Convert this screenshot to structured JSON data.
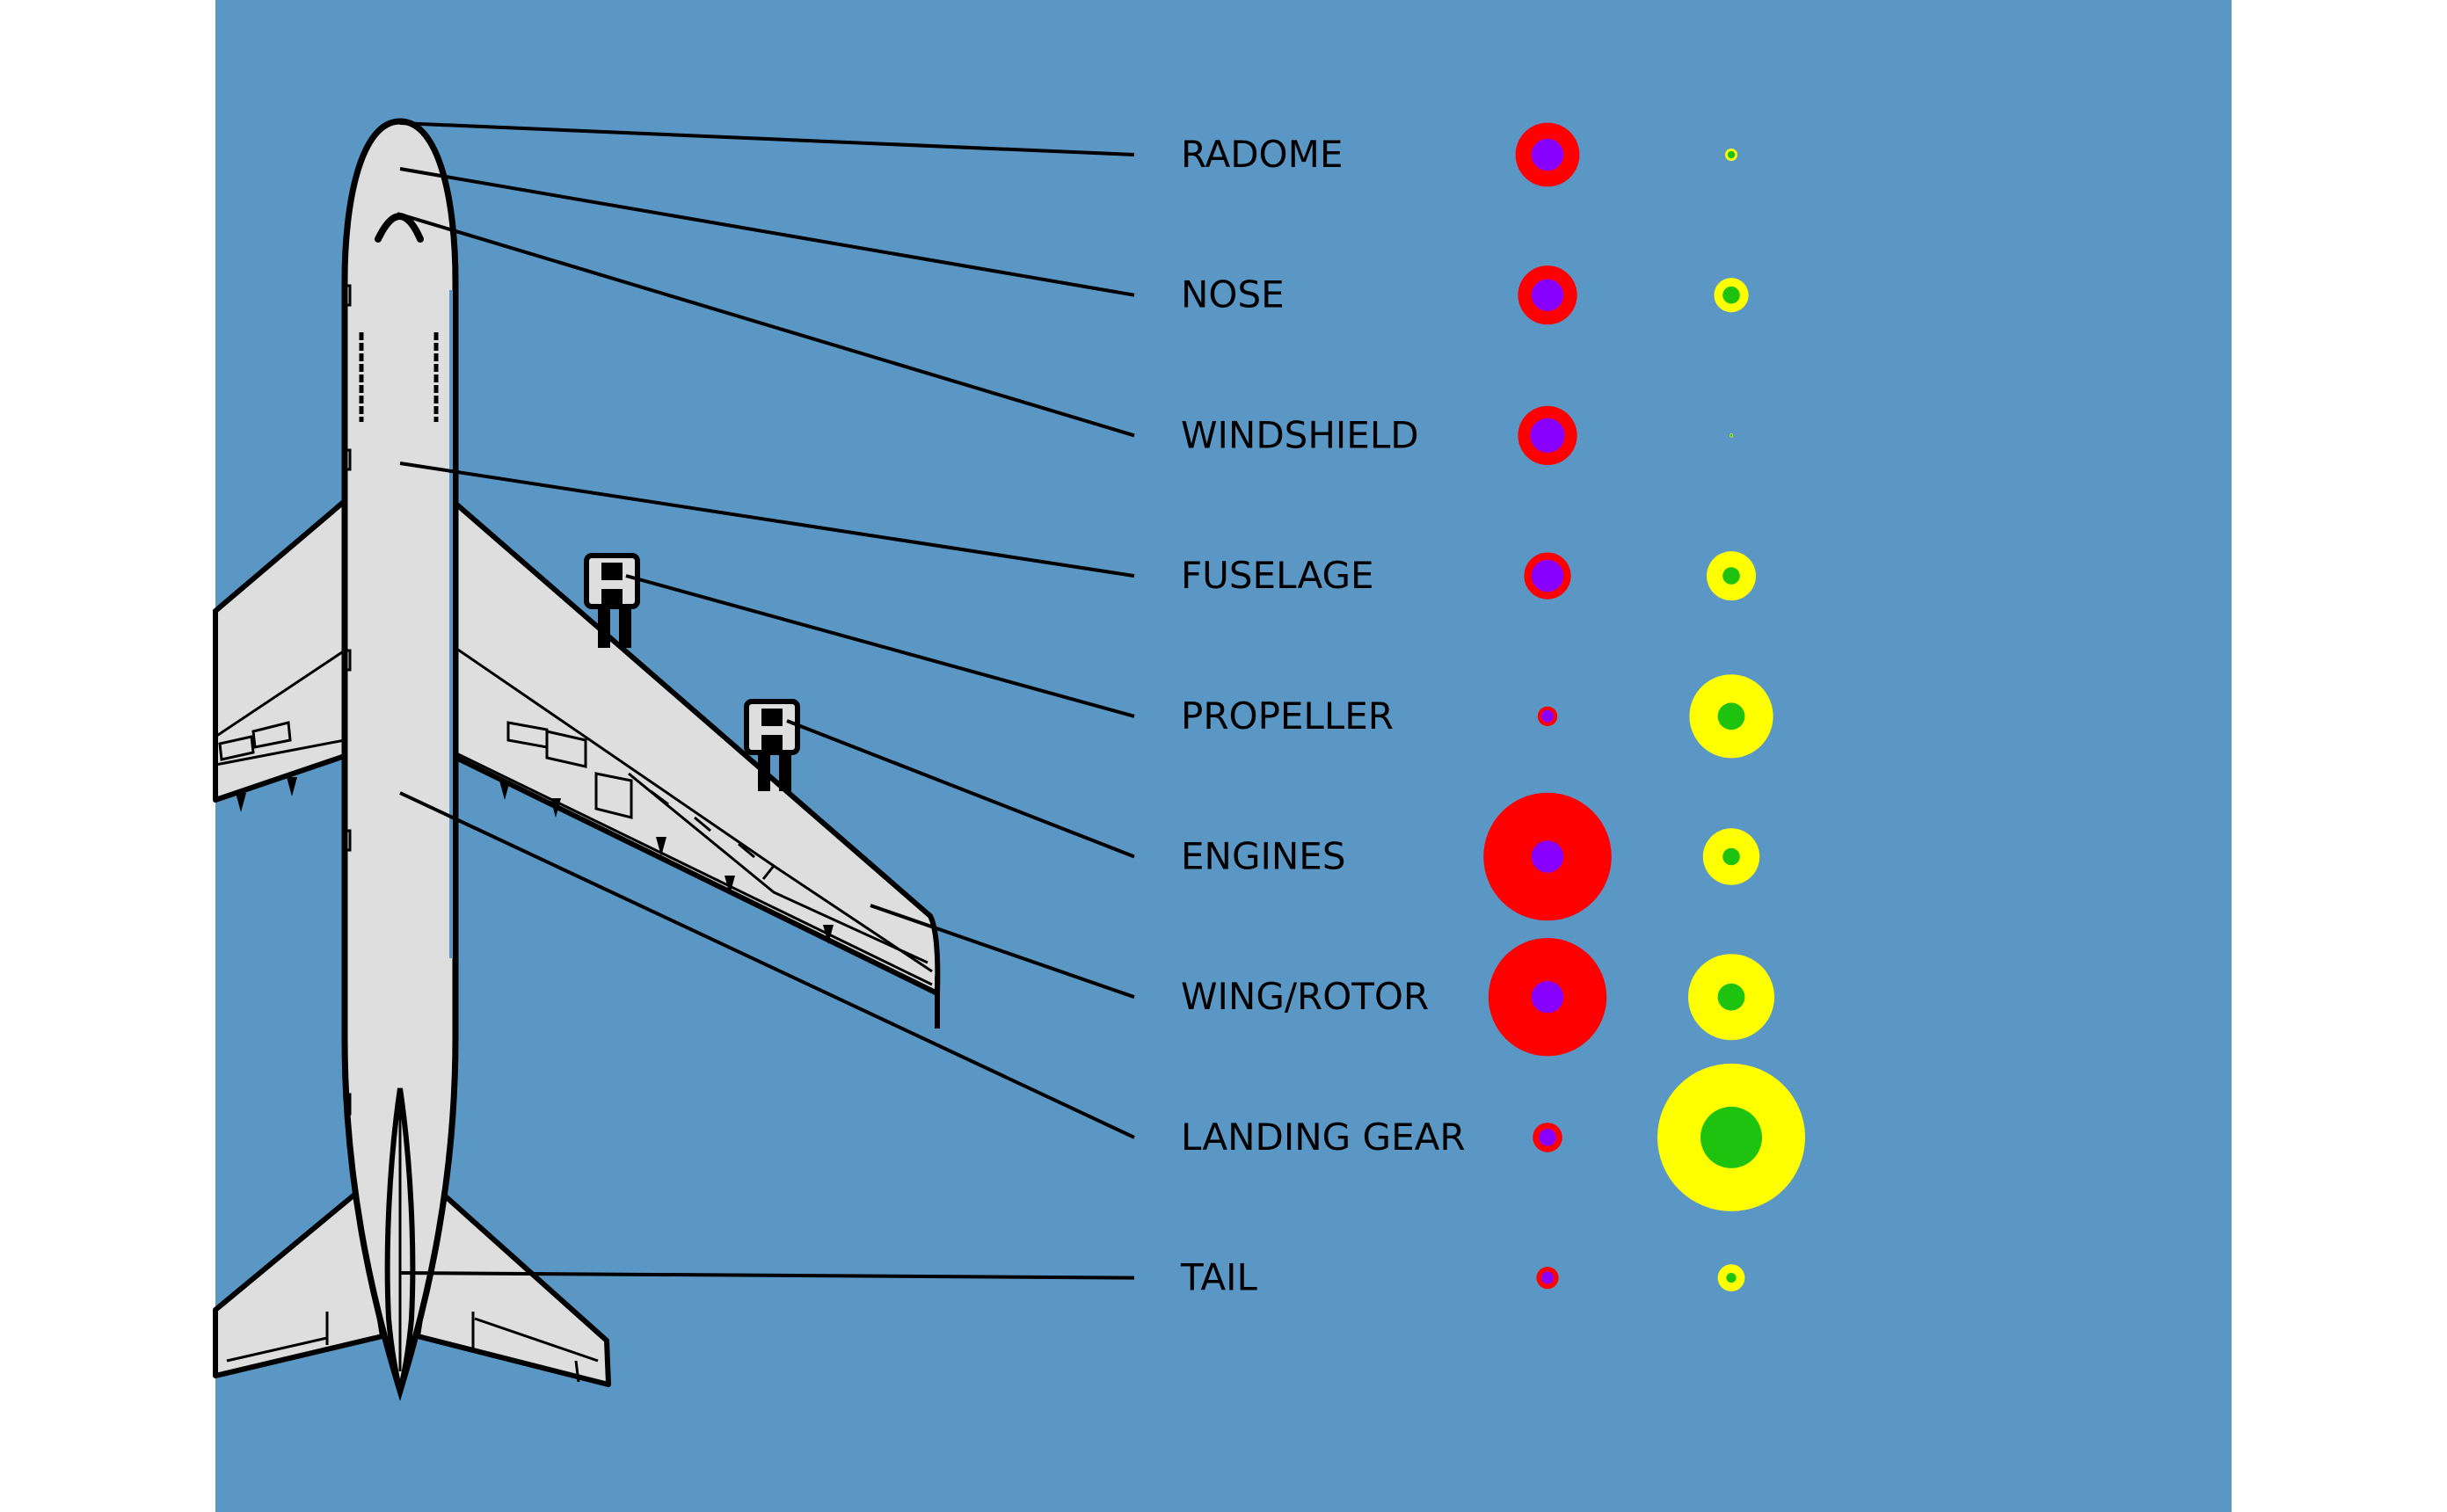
{
  "colors": {
    "background": "#5b97c4",
    "page": "#ffffff",
    "aircraft_fill": "#dedede",
    "outline": "#000000",
    "left_outer": "#ff0000",
    "left_inner": "#8800ff",
    "right_outer": "#ffff00",
    "right_inner": "#1ec30f"
  },
  "parts": [
    {
      "label": "RADOME",
      "left_outer": 0.52,
      "left_inner": 0.26,
      "right_outer": 0.1,
      "right_inner": 0.06
    },
    {
      "label": "NOSE",
      "left_outer": 0.48,
      "left_inner": 0.26,
      "right_outer": 0.28,
      "right_inner": 0.14
    },
    {
      "label": "WINDSHIELD",
      "left_outer": 0.48,
      "left_inner": 0.28,
      "right_outer": 0.03,
      "right_inner": 0.02
    },
    {
      "label": "FUSELAGE",
      "left_outer": 0.38,
      "left_inner": 0.26,
      "right_outer": 0.4,
      "right_inner": 0.14
    },
    {
      "label": "PROPELLER",
      "left_outer": 0.16,
      "left_inner": 0.1,
      "right_outer": 0.68,
      "right_inner": 0.22
    },
    {
      "label": "ENGINES",
      "left_outer": 1.04,
      "left_inner": 0.26,
      "right_outer": 0.46,
      "right_inner": 0.14
    },
    {
      "label": "WING/ROTOR",
      "left_outer": 0.96,
      "left_inner": 0.26,
      "right_outer": 0.7,
      "right_inner": 0.22
    },
    {
      "label": "LANDING GEAR",
      "left_outer": 0.24,
      "left_inner": 0.14,
      "right_outer": 1.2,
      "right_inner": 0.5
    },
    {
      "label": "TAIL",
      "left_outer": 0.18,
      "left_inner": 0.1,
      "right_outer": 0.22,
      "right_inner": 0.08
    }
  ]
}
